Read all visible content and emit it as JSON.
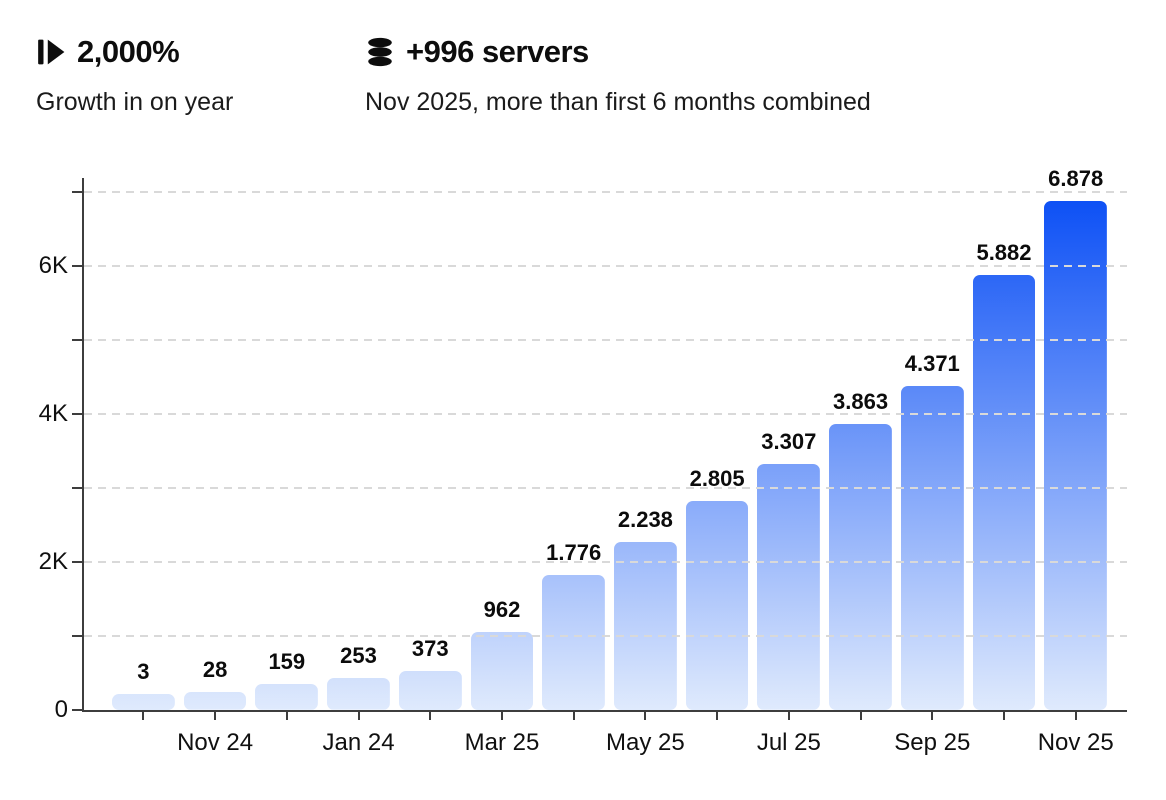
{
  "stats": [
    {
      "icon": "step-forward-icon",
      "value": "2,000%",
      "caption": "Growth in on year"
    },
    {
      "icon": "database-icon",
      "value": "+996 servers",
      "caption": "Nov 2025, more than first 6 months combined"
    }
  ],
  "chart_data": {
    "type": "bar",
    "values": [
      3,
      28,
      159,
      253,
      373,
      962,
      1776,
      2238,
      2805,
      3307,
      3863,
      4371,
      5882,
      6878
    ],
    "bar_labels": [
      "3",
      "28",
      "159",
      "253",
      "373",
      "962",
      "1.776",
      "2.238",
      "2.805",
      "3.307",
      "3.863",
      "4.371",
      "5.882",
      "6.878"
    ],
    "x_tick_labels": [
      "Nov 24",
      "Jan 24",
      "Mar 25",
      "May 25",
      "Jul 25",
      "Sep 25",
      "Nov 25"
    ],
    "y_tick_labels": [
      {
        "value": 0,
        "label": "0"
      },
      {
        "value": 2000,
        "label": "2K"
      },
      {
        "value": 4000,
        "label": "4K"
      },
      {
        "value": 6000,
        "label": "6K"
      }
    ],
    "ylim": [
      0,
      7000
    ],
    "y_grid_step": 1000,
    "grid_style": "dashed-horizontal",
    "legend": false,
    "colors": {
      "bar_gradient_top": "#0a4ef5",
      "bar_gradient_bottom": "rgba(211,226,252,0.72)",
      "axis": "#3d3d3d",
      "gridline": "#d9d9d9"
    }
  }
}
